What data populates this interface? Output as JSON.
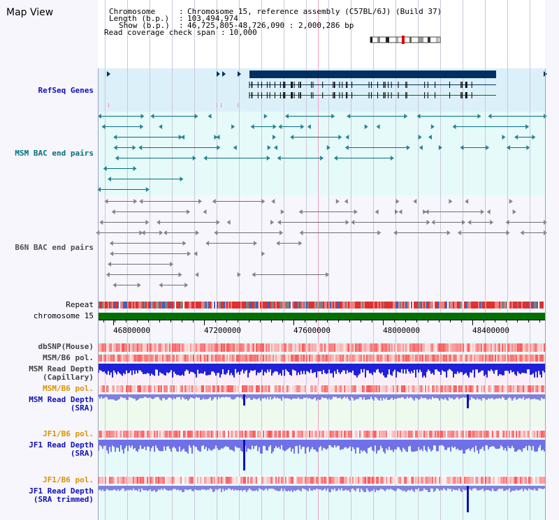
{
  "title": "Map View",
  "info": {
    "chromosome_key": "Chromosome",
    "chromosome_value": "Chromosome 15, reference assembly (C57BL/6J) (Build 37)",
    "length_key": "Length (b.p.)",
    "length_value": "103,494,974",
    "show_key": "Show (b.p.)",
    "show_value": "46,725,805-48,726,090 : 2,000,286 bp",
    "coverage_key": "Read coverage check span",
    "coverage_value": "10,000"
  },
  "tracks": {
    "refseq": "RefSeq Genes",
    "msm_bac": "MSM BAC end pairs",
    "b6n_bac": "B6N BAC end pairs",
    "repeat": "Repeat",
    "chromosome": "chromosome 15",
    "dbsnp": "dbSNP(Mouse)",
    "msm_b6_pol_1": "MSM/B6 pol.",
    "msm_depth_cap_1": "MSM Read Depth",
    "msm_depth_cap_2": "(Capillary)",
    "msm_b6_pol_2": "MSM/B6 pol.",
    "msm_depth_sra_1": "MSM Read Depth",
    "msm_depth_sra_2": "(SRA)",
    "jf1_b6_pol_1": "JF1/B6 pol.",
    "jf1_depth_sra_1": "JF1 Read Depth",
    "jf1_depth_sra_2": "(SRA)",
    "jf1_b6_pol_2": "JF1/B6 pol.",
    "jf1_depth_trim_1": "JF1 Read Depth",
    "jf1_depth_trim_2": "(SRA trimmed)"
  },
  "axis_ticks": [
    "46800000",
    "47200000",
    "47600000",
    "48000000",
    "48400000"
  ],
  "colors": {
    "refseq": "#1010b8",
    "msm_bac": "#007080",
    "b6n_bac": "#505050",
    "orange": "#e09000",
    "blue": "#1010b8",
    "chromosome": "#007000"
  }
}
